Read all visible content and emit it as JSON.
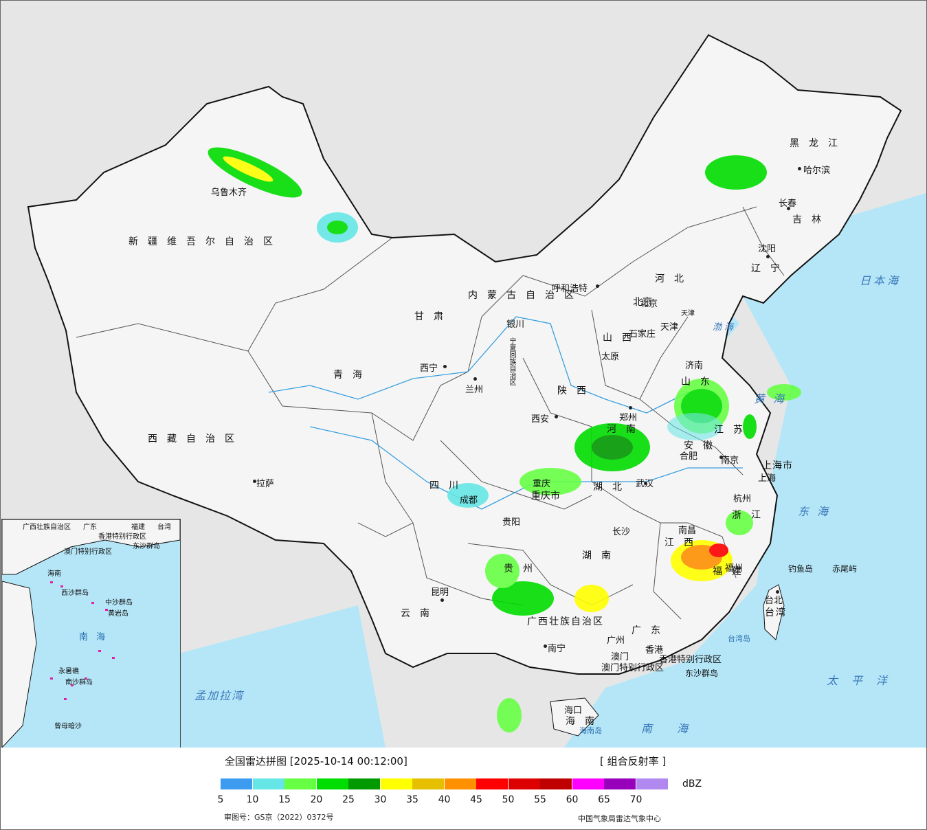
{
  "title": "全国雷达拼图",
  "timestamp": "[2025-10-14 00:12:00]",
  "product": "[ 组合反射率 ]",
  "legend": {
    "unit": "dBZ",
    "ticks": [
      "5",
      "10",
      "15",
      "20",
      "25",
      "30",
      "35",
      "40",
      "45",
      "50",
      "55",
      "60",
      "65",
      "70"
    ],
    "colors": [
      "#3d9cf0",
      "#66e6e6",
      "#66ff44",
      "#00dd00",
      "#009900",
      "#ffff00",
      "#e6c000",
      "#ff9000",
      "#ff0000",
      "#dd0000",
      "#c00000",
      "#ff00ff",
      "#9900bb",
      "#b088f0"
    ]
  },
  "approval_number": "审图号：GS京（2022）0372号",
  "source": "中国气象局雷达气象中心",
  "provinces": [
    "新疆维吾尔自治区",
    "西藏自治区",
    "青海",
    "甘肃",
    "内蒙古自治区",
    "黑龙江",
    "吉林",
    "辽宁",
    "河北",
    "山西",
    "陕西",
    "四川",
    "云南",
    "贵州",
    "湖南",
    "湖北",
    "河南",
    "山东",
    "江苏",
    "安徽",
    "浙江",
    "江西",
    "福建",
    "广东",
    "广西壮族自治区",
    "海南",
    "台湾",
    "宁夏回族自治区",
    "重庆市",
    "上海市",
    "北京",
    "天津"
  ],
  "cities": [
    "乌鲁木齐",
    "拉萨",
    "西宁",
    "兰州",
    "银川",
    "呼和浩特",
    "太原",
    "石家庄",
    "北京",
    "天津",
    "济南",
    "郑州",
    "西安",
    "成都",
    "重庆",
    "贵阳",
    "昆明",
    "南宁",
    "长沙",
    "武汉",
    "南昌",
    "合肥",
    "南京",
    "上海",
    "杭州",
    "福州",
    "台北",
    "广州",
    "香港",
    "澳门",
    "海口",
    "沈阳",
    "长春",
    "哈尔滨"
  ],
  "sea_labels": [
    "黄海",
    "渤海",
    "东海",
    "南海",
    "太平洋",
    "日本海",
    "孟加拉湾",
    "台湾岛",
    "海南岛",
    "钓鱼岛",
    "赤尾屿",
    "东沙群岛",
    "香港特别行政区",
    "澳门特别行政区"
  ],
  "inset_labels": [
    "广西壮族自治区",
    "广东",
    "福建",
    "台湾",
    "香港特别行政区",
    "澳门特别行政区",
    "东沙群岛",
    "海南",
    "西沙群岛",
    "中沙群岛",
    "黄岩岛",
    "南海",
    "南沙群岛",
    "永暑礁",
    "曾母暗沙"
  ]
}
